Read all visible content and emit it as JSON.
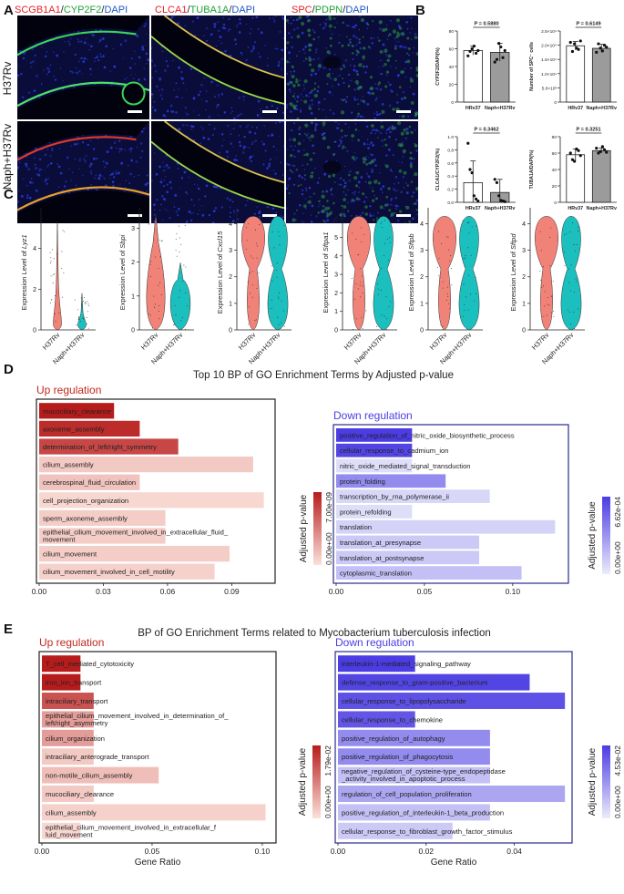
{
  "panel_letters": [
    "A",
    "B",
    "C",
    "D",
    "E"
  ],
  "panel_a": {
    "stain_labels": [
      {
        "parts": [
          {
            "text": "SCGB1A1",
            "color": "#e8202a"
          },
          {
            "text": "/",
            "color": "#222222"
          },
          {
            "text": "CYP2F2",
            "color": "#1fa33a"
          },
          {
            "text": "/",
            "color": "#222222"
          },
          {
            "text": "DAPI",
            "color": "#2257c8"
          }
        ]
      },
      {
        "parts": [
          {
            "text": "CLCA1",
            "color": "#e8202a"
          },
          {
            "text": "/",
            "color": "#222222"
          },
          {
            "text": "TUBA1A",
            "color": "#1fa33a"
          },
          {
            "text": "/",
            "color": "#222222"
          },
          {
            "text": "DAPI",
            "color": "#2257c8"
          }
        ]
      },
      {
        "parts": [
          {
            "text": "SPC",
            "color": "#e8202a"
          },
          {
            "text": "/",
            "color": "#222222"
          },
          {
            "text": "PDPN",
            "color": "#1fa33a"
          },
          {
            "text": "/",
            "color": "#222222"
          },
          {
            "text": "DAPI",
            "color": "#2257c8"
          }
        ]
      }
    ],
    "row_labels": [
      "H37Rv",
      "Naph+H37Rv"
    ]
  },
  "panel_b": [
    {
      "ylabel": "CYP2F2/DAPI(%)",
      "p": "P = 0.5880",
      "yticks": [
        "0",
        "20",
        "40",
        "60",
        "80"
      ],
      "ymax": 80,
      "categories": [
        "HRv37",
        "Naph+H37Rv"
      ],
      "means": [
        58,
        56
      ],
      "sd": [
        5,
        10
      ],
      "points": [
        [
          52,
          57,
          60,
          63,
          55,
          58
        ],
        [
          45,
          48,
          66,
          62,
          50,
          58
        ]
      ]
    },
    {
      "ylabel": "Number of SPC⁻ cells",
      "p": "P = 0.6149",
      "yticks": [
        "0",
        "5.0×10³",
        "1.0×10⁴",
        "1.5×10⁴",
        "2.0×10⁴",
        "2.5×10⁴"
      ],
      "ymax": 25000,
      "categories": [
        "HRv37",
        "Naph+H37Rv"
      ],
      "means": [
        19800,
        18900
      ],
      "sd": [
        1500,
        1400
      ],
      "points": [
        [
          21000,
          17800,
          20500,
          19000,
          18500,
          21500
        ],
        [
          17500,
          20500,
          19000,
          18000,
          20000,
          19300
        ]
      ]
    },
    {
      "ylabel": "CLCA1/CYP2F2(%)",
      "p": "P = 0.3462",
      "yticks": [
        "0.0",
        "0.2",
        "0.4",
        "0.6",
        "0.8",
        "1.0"
      ],
      "ymax": 1.0,
      "categories": [
        "HRv37",
        "Naph+H37Rv"
      ],
      "means": [
        0.3,
        0.15
      ],
      "sd": [
        0.33,
        0.2
      ],
      "points": [
        [
          0.9,
          0.5,
          0.45,
          0.1,
          0.05,
          0.02
        ],
        [
          0.35,
          0.3,
          0.1,
          0.03,
          0.02,
          0.01
        ]
      ]
    },
    {
      "ylabel": "TUBA1A/DAPI(%)",
      "p": "P = 0.3251",
      "yticks": [
        "0",
        "20",
        "40",
        "60",
        "80"
      ],
      "ymax": 80,
      "categories": [
        "HRv37",
        "Naph+H37Rv"
      ],
      "means": [
        58,
        63
      ],
      "sd": [
        7,
        3
      ],
      "points": [
        [
          60,
          52,
          50,
          65,
          63,
          57
        ],
        [
          66,
          60,
          62,
          68,
          64,
          61
        ]
      ]
    }
  ],
  "panel_c": {
    "ylabel_prefix": "Expression Level of ",
    "genes": [
      "Lyz1",
      "Sbpi",
      "Cxcl15",
      "Sftpa1",
      "Sftpb",
      "Sftpd"
    ],
    "yticks": [
      [
        0,
        2,
        4
      ],
      [
        0,
        1,
        2,
        3
      ],
      [
        0,
        1,
        2,
        3,
        4
      ],
      [
        0,
        1,
        2,
        3,
        4,
        5,
        6
      ],
      [
        0,
        1,
        2,
        3,
        4
      ],
      [
        0,
        1,
        2,
        3,
        4
      ]
    ],
    "ymax": [
      6,
      3.6,
      4.6,
      6.6,
      4.6,
      4.6
    ],
    "shape": [
      "narrow",
      "tall",
      "wide",
      "wide",
      "wide",
      "wide"
    ],
    "groups": [
      "H37Rv",
      "Naph+H37Rv"
    ],
    "colors": [
      "#f08277",
      "#1bbfbe"
    ]
  },
  "panel_d": {
    "title": "Top 10 BP of GO Enrichment Terms by Adjusted p-value",
    "up": {
      "heading": "Up regulation",
      "terms": [
        "mucociliary_clearance",
        "axoneme_assembly",
        "determination_of_left/right_symmetry",
        "cilium_assembly",
        "cerebrospinal_fluid_circulation",
        "cell_projection_organization",
        "sperm_axoneme_assembly",
        "epithelial_cilium_movement_involved_in_extracellular_fluid_ movement",
        "cilium_movement",
        "cilium_movement_involved_in_cell_motility"
      ],
      "values": [
        0.035,
        0.047,
        0.065,
        0.1,
        0.047,
        0.105,
        0.059,
        0.059,
        0.089,
        0.082
      ],
      "intensity": [
        1.0,
        0.92,
        0.78,
        0.12,
        0.15,
        0.05,
        0.1,
        0.1,
        0.1,
        0.08
      ],
      "xticks": [
        0.0,
        0.03,
        0.06,
        0.09
      ],
      "xtick_labels": [
        "0.00",
        "0.03",
        "0.06",
        "0.09"
      ],
      "xmax": 0.109,
      "colorbar": {
        "label": "Adjusted p-value",
        "top": "7.00e-09",
        "bottom": "0.00e+00",
        "high": "#b71c1c",
        "low": "#fbe1da"
      }
    },
    "down": {
      "heading": "Down regulation",
      "terms": [
        "positive_regulation_of_nitric_oxide_biosynthetic_process",
        "cellular_response_to_cadmium_ion",
        "nitric_oxide_mediated_signal_transduction",
        "protein_folding",
        "transcription_by_rna_polymerase_ii",
        "protein_refolding",
        "translation",
        "translation_at_presynapse",
        "translation_at_postsynapse",
        "cytoplasmic_translation"
      ],
      "values": [
        0.043,
        0.043,
        0.043,
        0.062,
        0.087,
        0.043,
        0.124,
        0.081,
        0.081,
        0.105
      ],
      "intensity": [
        1.0,
        0.95,
        0.08,
        0.55,
        0.12,
        0.08,
        0.15,
        0.2,
        0.2,
        0.25
      ],
      "xticks": [
        0.0,
        0.05,
        0.1
      ],
      "xtick_labels": [
        "0.00",
        "0.05",
        "0.10"
      ],
      "xmax": 0.13,
      "colorbar": {
        "label": "Adjusted p-value",
        "top": "6.62e-04",
        "bottom": "0.00e+00",
        "high": "#4b3ce3",
        "low": "#ececfb"
      }
    }
  },
  "panel_e": {
    "title": "BP of GO Enrichment Terms related to Mycobacterium tuberculosis infection",
    "xlabel": "Gene Ratio",
    "up": {
      "heading": "Up regulation",
      "terms": [
        "T_cell_mediated_cytotoxicity",
        "iron_ion_transport",
        "intraciliary_transport",
        "epithelial_cilium_movement_involved_in_determination_of_ left/right_asymmetry",
        "cilium_organization",
        "intraciliary_anterograde_transport",
        "non-motile_cilium_assembly",
        "mucociliary_clearance",
        "cilium_assembly",
        "epithelial_cilium_movement_involved_in_extracellular_f luid_movement"
      ],
      "values": [
        0.0175,
        0.0175,
        0.0235,
        0.0235,
        0.0235,
        0.0235,
        0.053,
        0.0235,
        0.1015,
        0.0175
      ],
      "intensity": [
        1.0,
        1.0,
        0.72,
        0.35,
        0.35,
        0.12,
        0.18,
        0.12,
        0.08,
        0.05
      ],
      "xticks": [
        0.0,
        0.05,
        0.1
      ],
      "xtick_labels": [
        "0.00",
        "0.05",
        "0.10"
      ],
      "xmax": 0.105,
      "colorbar": {
        "label": "Adjusted p-value",
        "top": "1.79e-02",
        "bottom": "0.00e+00",
        "high": "#b71c1c",
        "low": "#fbe1da"
      }
    },
    "down": {
      "heading": "Down regulation",
      "terms": [
        "interleukin-1-mediated_signaling_pathway",
        "defense_response_to_gram-positive_bacterium",
        "cellular_response_to_lipopolysaccharide",
        "cellular_response_to_chemokine",
        "positive_regulation_of_autophagy",
        "positive_regulation_of_phagocytosis",
        "negative_regulation_of_cysteine-type_endopeptidase _activity_involved_in_apoptotic_process",
        "regulation_of_cell_population_proliferation",
        "positive_regulation_of_interleukin-1_beta_production",
        "cellular_response_to_fibroblast_growth_factor_stimulus"
      ],
      "values": [
        0.0175,
        0.0435,
        0.0515,
        0.0175,
        0.0345,
        0.0345,
        0.0345,
        0.0515,
        0.0345,
        0.026
      ],
      "intensity": [
        1.0,
        0.95,
        0.88,
        0.85,
        0.55,
        0.55,
        0.25,
        0.4,
        0.25,
        0.2
      ],
      "xticks": [
        0.0,
        0.02,
        0.04
      ],
      "xtick_labels": [
        "0.00",
        "0.02",
        "0.04"
      ],
      "xmax": 0.0525,
      "colorbar": {
        "label": "Adjusted p-value",
        "top": "4.53e-02",
        "bottom": "0.00e+00",
        "high": "#4b3ce3",
        "low": "#ececfb"
      }
    }
  }
}
